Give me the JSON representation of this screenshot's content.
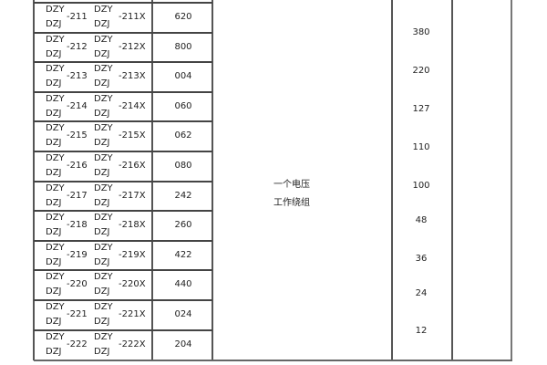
{
  "table": {
    "rows": [
      {
        "prefix_a": "DZY",
        "prefix_b": "DZJ",
        "code": "-211",
        "code_x": "-211X",
        "number": "620"
      },
      {
        "prefix_a": "DZY",
        "prefix_b": "DZJ",
        "code": "-212",
        "code_x": "-212X",
        "number": "800"
      },
      {
        "prefix_a": "DZY",
        "prefix_b": "DZJ",
        "code": "-213",
        "code_x": "-213X",
        "number": "004"
      },
      {
        "prefix_a": "DZY",
        "prefix_b": "DZJ",
        "code": "-214",
        "code_x": "-214X",
        "number": "060"
      },
      {
        "prefix_a": "DZY",
        "prefix_b": "DZJ",
        "code": "-215",
        "code_x": "-215X",
        "number": "062"
      },
      {
        "prefix_a": "DZY",
        "prefix_b": "DZJ",
        "code": "-216",
        "code_x": "-216X",
        "number": "080"
      },
      {
        "prefix_a": "DZY",
        "prefix_b": "DZJ",
        "code": "-217",
        "code_x": "-217X",
        "number": "242"
      },
      {
        "prefix_a": "DZY",
        "prefix_b": "DZJ",
        "code": "-218",
        "code_x": "-218X",
        "number": "260"
      },
      {
        "prefix_a": "DZY",
        "prefix_b": "DZJ",
        "code": "-219",
        "code_x": "-219X",
        "number": "422"
      },
      {
        "prefix_a": "DZY",
        "prefix_b": "DZJ",
        "code": "-220",
        "code_x": "-220X",
        "number": "440"
      },
      {
        "prefix_a": "DZY",
        "prefix_b": "DZJ",
        "code": "-221",
        "code_x": "-221X",
        "number": "024"
      },
      {
        "prefix_a": "DZY",
        "prefix_b": "DZJ",
        "code": "-222",
        "code_x": "-222X",
        "number": "204"
      }
    ],
    "winding_line1": "一个电压",
    "winding_line2": "工作绕组",
    "voltages": [
      "380",
      "220",
      "127",
      "110",
      "100",
      "48",
      "36",
      "24",
      "12"
    ]
  }
}
